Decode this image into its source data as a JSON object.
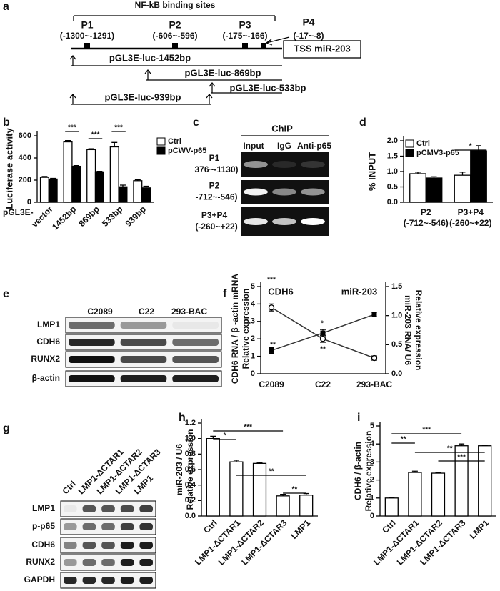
{
  "figure": {
    "panel_labels": [
      "a",
      "b",
      "c",
      "d",
      "e",
      "f",
      "g",
      "h",
      "i"
    ],
    "promoter_diagram": {
      "title": "NF-kB binding sites",
      "sites": [
        {
          "name": "P1",
          "range": "(-1300~-1291)"
        },
        {
          "name": "P2",
          "range": "(-606~-596)"
        },
        {
          "name": "P3",
          "range": "(-175~-166)"
        },
        {
          "name": "P4",
          "range": "(-17~-8)"
        }
      ],
      "tss": "TSS miR-203",
      "constructs": [
        "pGL3E-luc-1452bp",
        "pGL3E-luc-869bp",
        "pGL3E-luc-533bp",
        "pGL3E-luc-939bp"
      ]
    },
    "chip": {
      "title": "ChIP",
      "lanes": [
        "Input",
        "IgG",
        "Anti-p65"
      ],
      "rows": [
        {
          "name": "P1",
          "range": "376~-1130)"
        },
        {
          "name": "P2",
          "range": "-712~-546)"
        },
        {
          "name": "P3+P4",
          "range": "(-260~+22)"
        }
      ]
    },
    "blot_e": {
      "lanes": [
        "C2089",
        "C22",
        "293-BAC"
      ],
      "rows": [
        "LMP1",
        "CDH6",
        "RUNX2",
        "β-actin"
      ]
    },
    "blot_g": {
      "lanes": [
        "Ctrl",
        "LMP1-ΔCTAR1",
        "LMP1-ΔCTAR2",
        "LMP1-ΔCTAR3",
        "LMP1"
      ],
      "rows": [
        "LMP1",
        "p-p65",
        "CDH6",
        "RUNX2",
        "GAPDH"
      ]
    }
  },
  "chart_data": [
    {
      "type": "bar",
      "ylabel": "Luciferase activity",
      "x_prefix": "pGL3E-",
      "categories": [
        "vector",
        "1452bp",
        "869bp",
        "533bp",
        "939bp"
      ],
      "series": [
        {
          "name": "Ctrl",
          "color": "#ffffff",
          "values": [
            225,
            545,
            475,
            500,
            195
          ],
          "errors": [
            8,
            12,
            8,
            40,
            8
          ]
        },
        {
          "name": "pCWV-p65",
          "color": "#000000",
          "values": [
            210,
            325,
            275,
            140,
            130
          ],
          "errors": [
            6,
            6,
            5,
            15,
            15
          ]
        }
      ],
      "ylim": [
        0,
        600
      ],
      "yticks": [
        0,
        200,
        400,
        600
      ],
      "significance": [
        "***",
        "***",
        "***"
      ],
      "legend": "right"
    },
    {
      "type": "bar",
      "ylabel": "% INPUT",
      "categories": [
        "P2",
        "P3+P4"
      ],
      "category_notes": [
        "(-712~-546)",
        "(-260~+22)"
      ],
      "series": [
        {
          "name": "Ctrl",
          "color": "#ffffff",
          "values": [
            0.93,
            0.88
          ],
          "errors": [
            0.05,
            0.1
          ]
        },
        {
          "name": "pCMV3-p65",
          "color": "#000000",
          "values": [
            0.79,
            1.67
          ],
          "errors": [
            0.04,
            0.17
          ]
        }
      ],
      "ylim": [
        0,
        2
      ],
      "yticks": [
        {
          "value": 0,
          "label": "0.0"
        },
        {
          "value": 0.5,
          "label": "0.5"
        },
        {
          "value": 1,
          "label": "1.0"
        },
        {
          "value": 1.5,
          "label": "1.5"
        },
        {
          "value": 2,
          "label": "2.0"
        }
      ],
      "significance": [
        "*"
      ],
      "legend": "upper left"
    },
    {
      "type": "line",
      "ylabel": [
        "CDH6 RNA / β -actin mRNA",
        "Relative expression"
      ],
      "y2label": [
        "miR-203 RNA/ U6",
        "Relative expression"
      ],
      "categories": [
        "C2089",
        "C22",
        "293-BAC"
      ],
      "series": [
        {
          "name": "CDH6",
          "color": "#333333",
          "marker": "circle",
          "values": [
            3.8,
            2.0,
            0.9
          ],
          "errors": [
            0.2,
            0.2,
            0.12
          ]
        },
        {
          "name": "miR-203",
          "color": "#333333",
          "marker": "square",
          "axis": "y2",
          "values": [
            0.4,
            0.7,
            1.02
          ],
          "errors": [
            0.05,
            0.06,
            0.04
          ]
        }
      ],
      "ylim": [
        0,
        5
      ],
      "yticks": [
        0,
        1,
        2,
        3,
        4,
        5
      ],
      "y2lim": [
        0,
        1.5
      ],
      "y2ticks": [
        {
          "value": 0,
          "label": "0.0"
        },
        {
          "value": 0.5,
          "label": "0.5"
        },
        {
          "value": 1,
          "label": "1.0"
        },
        {
          "value": 1.5,
          "label": "1.5"
        }
      ],
      "annotations": [
        "***",
        "**",
        "*",
        "**"
      ]
    },
    {
      "type": "bar",
      "ylabel": [
        "miR-203 / U6",
        "Relative expression"
      ],
      "categories": [
        "Ctrl",
        "LMP1-ΔCTAR1",
        "LMP1-ΔCTAR2",
        "LMP1-ΔCTAR3",
        "LMP1"
      ],
      "series": [
        {
          "color": "#ffffff",
          "values": [
            1.0,
            0.7,
            0.68,
            0.26,
            0.27
          ],
          "errors": [
            0.03,
            0.02,
            0.01,
            0.02,
            0.02
          ]
        }
      ],
      "ylim": [
        0,
        1.2
      ],
      "yticks": [
        {
          "value": 0,
          "label": "0.0"
        },
        {
          "value": 0.2,
          "label": "0.2"
        },
        {
          "value": 0.4,
          "label": "0.4"
        },
        {
          "value": 0.6,
          "label": "0.6"
        },
        {
          "value": 0.8,
          "label": "0.8"
        },
        {
          "value": 1,
          "label": "1.0"
        },
        {
          "value": 1.2,
          "label": "1.2"
        }
      ],
      "significance": [
        "*",
        "***",
        "**",
        "**"
      ]
    },
    {
      "type": "bar",
      "ylabel": [
        "CDH6 / β-actin",
        "Relative expression"
      ],
      "categories": [
        "Ctrl",
        "LMP1-ΔCTAR1",
        "LMP1-ΔCTAR2",
        "LMP1-ΔCTAR3",
        "LMP1"
      ],
      "series": [
        {
          "color": "#ffffff",
          "values": [
            1.0,
            2.42,
            2.38,
            3.9,
            3.9
          ],
          "errors": [
            0.03,
            0.07,
            0.03,
            0.1,
            0.03
          ]
        }
      ],
      "ylim": [
        0,
        5
      ],
      "yticks": [
        0,
        1,
        2,
        3,
        4,
        5
      ],
      "significance": [
        "**",
        "***",
        "**",
        "***"
      ]
    }
  ]
}
